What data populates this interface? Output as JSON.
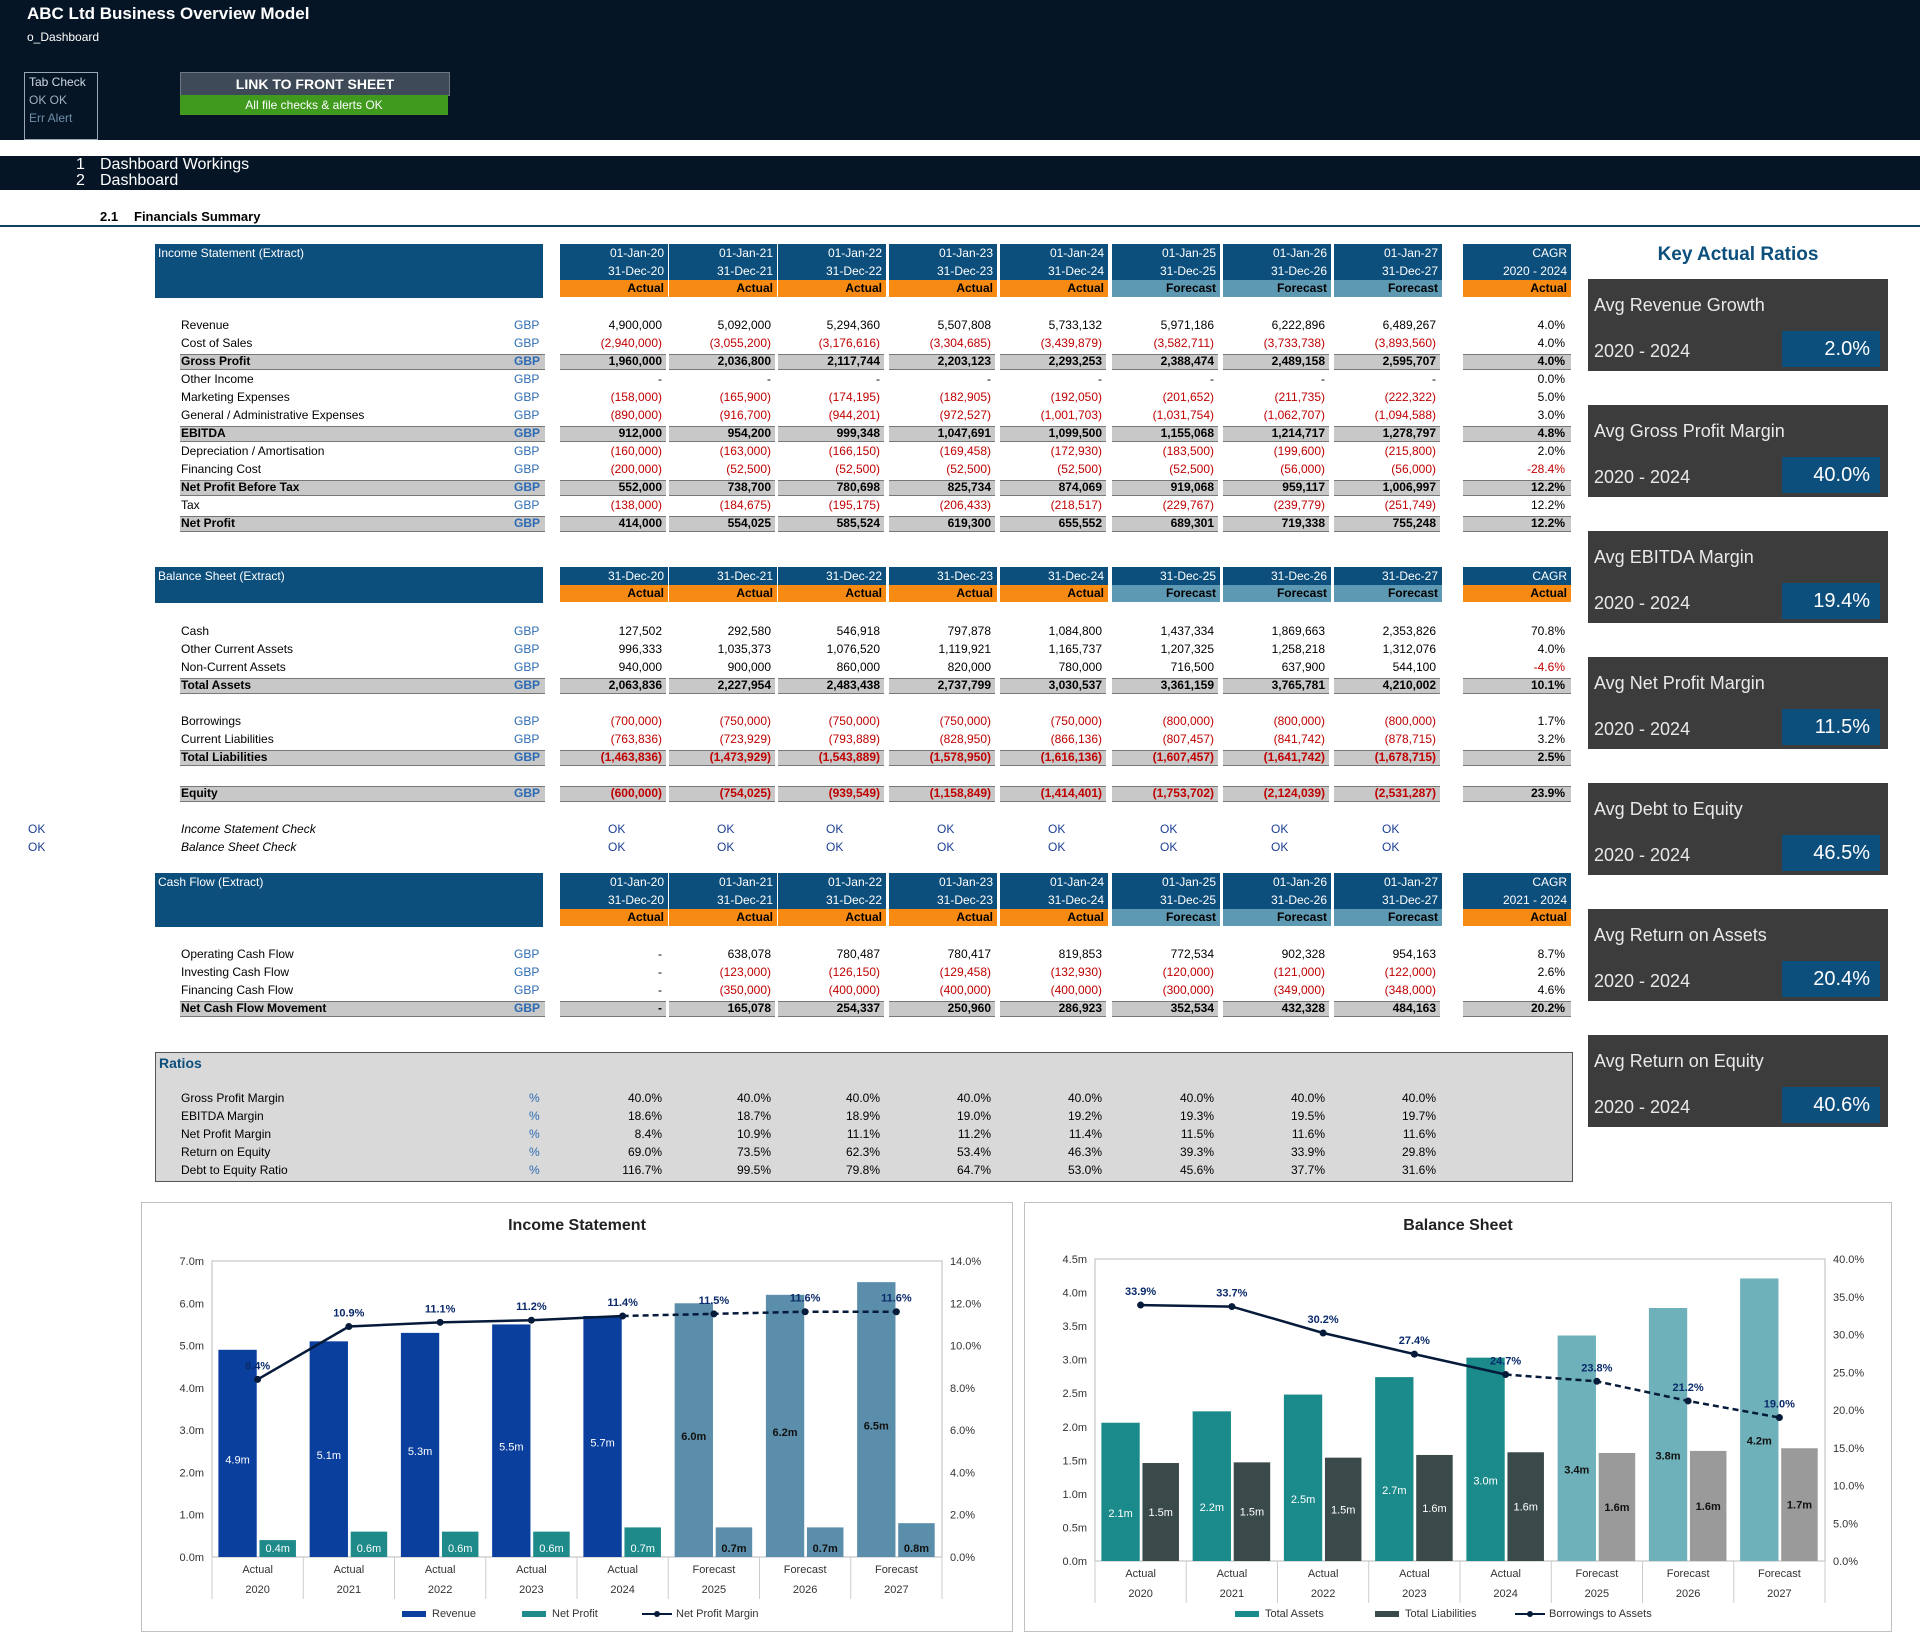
{
  "app": {
    "title": "ABC Ltd Business Overview Model",
    "sheet": "o_Dashboard",
    "tab_check_label": "Tab Check",
    "tab_check_ok": "OK  OK",
    "tab_check_err": "Err  Alert",
    "link_button": "LINK TO FRONT SHEET",
    "checks_status": "All file checks & alerts OK"
  },
  "nav": {
    "items": [
      {
        "num": "1",
        "label": "Dashboard Workings"
      },
      {
        "num": "2",
        "label": "Dashboard"
      }
    ]
  },
  "section": {
    "num": "2.1",
    "label": "Financials Summary"
  },
  "income_statement": {
    "title": "Income Statement (Extract)",
    "periods": [
      {
        "start": "01-Jan-20",
        "end": "31-Dec-20",
        "status": "Actual"
      },
      {
        "start": "01-Jan-21",
        "end": "31-Dec-21",
        "status": "Actual"
      },
      {
        "start": "01-Jan-22",
        "end": "31-Dec-22",
        "status": "Actual"
      },
      {
        "start": "01-Jan-23",
        "end": "31-Dec-23",
        "status": "Actual"
      },
      {
        "start": "01-Jan-24",
        "end": "31-Dec-24",
        "status": "Actual"
      },
      {
        "start": "01-Jan-25",
        "end": "31-Dec-25",
        "status": "Forecast"
      },
      {
        "start": "01-Jan-26",
        "end": "31-Dec-26",
        "status": "Forecast"
      },
      {
        "start": "01-Jan-27",
        "end": "31-Dec-27",
        "status": "Forecast"
      }
    ],
    "cagr": {
      "label": "CAGR",
      "range": "2020 - 2024",
      "status": "Actual"
    },
    "rows": [
      {
        "label": "Revenue",
        "unit": "GBP",
        "values": [
          "4,900,000",
          "5,092,000",
          "5,294,360",
          "5,507,808",
          "5,733,132",
          "5,971,186",
          "6,222,896",
          "6,489,267"
        ],
        "cagr": "4.0%",
        "total": false
      },
      {
        "label": "Cost of Sales",
        "unit": "GBP",
        "values": [
          "(2,940,000)",
          "(3,055,200)",
          "(3,176,616)",
          "(3,304,685)",
          "(3,439,879)",
          "(3,582,711)",
          "(3,733,738)",
          "(3,893,560)"
        ],
        "cagr": "4.0%",
        "total": false
      },
      {
        "label": "Gross Profit",
        "unit": "GBP",
        "values": [
          "1,960,000",
          "2,036,800",
          "2,117,744",
          "2,203,123",
          "2,293,253",
          "2,388,474",
          "2,489,158",
          "2,595,707"
        ],
        "cagr": "4.0%",
        "total": true
      },
      {
        "label": "Other Income",
        "unit": "GBP",
        "values": [
          "-",
          "-",
          "-",
          "-",
          "-",
          "-",
          "-",
          "-"
        ],
        "cagr": "0.0%",
        "total": false
      },
      {
        "label": "Marketing Expenses",
        "unit": "GBP",
        "values": [
          "(158,000)",
          "(165,900)",
          "(174,195)",
          "(182,905)",
          "(192,050)",
          "(201,652)",
          "(211,735)",
          "(222,322)"
        ],
        "cagr": "5.0%",
        "total": false
      },
      {
        "label": "General / Administrative Expenses",
        "unit": "GBP",
        "values": [
          "(890,000)",
          "(916,700)",
          "(944,201)",
          "(972,527)",
          "(1,001,703)",
          "(1,031,754)",
          "(1,062,707)",
          "(1,094,588)"
        ],
        "cagr": "3.0%",
        "total": false
      },
      {
        "label": "EBITDA",
        "unit": "GBP",
        "values": [
          "912,000",
          "954,200",
          "999,348",
          "1,047,691",
          "1,099,500",
          "1,155,068",
          "1,214,717",
          "1,278,797"
        ],
        "cagr": "4.8%",
        "total": true
      },
      {
        "label": "Depreciation / Amortisation",
        "unit": "GBP",
        "values": [
          "(160,000)",
          "(163,000)",
          "(166,150)",
          "(169,458)",
          "(172,930)",
          "(183,500)",
          "(199,600)",
          "(215,800)"
        ],
        "cagr": "2.0%",
        "total": false
      },
      {
        "label": "Financing Cost",
        "unit": "GBP",
        "values": [
          "(200,000)",
          "(52,500)",
          "(52,500)",
          "(52,500)",
          "(52,500)",
          "(52,500)",
          "(56,000)",
          "(56,000)"
        ],
        "cagr": "-28.4%",
        "total": false
      },
      {
        "label": "Net Profit Before Tax",
        "unit": "GBP",
        "values": [
          "552,000",
          "738,700",
          "780,698",
          "825,734",
          "874,069",
          "919,068",
          "959,117",
          "1,006,997"
        ],
        "cagr": "12.2%",
        "total": true
      },
      {
        "label": "Tax",
        "unit": "GBP",
        "values": [
          "(138,000)",
          "(184,675)",
          "(195,175)",
          "(206,433)",
          "(218,517)",
          "(229,767)",
          "(239,779)",
          "(251,749)"
        ],
        "cagr": "12.2%",
        "total": false
      },
      {
        "label": "Net Profit",
        "unit": "GBP",
        "values": [
          "414,000",
          "554,025",
          "585,524",
          "619,300",
          "655,552",
          "689,301",
          "719,338",
          "755,248"
        ],
        "cagr": "12.2%",
        "total": true
      }
    ]
  },
  "balance_sheet": {
    "title": "Balance Sheet (Extract)",
    "dates": [
      "31-Dec-20",
      "31-Dec-21",
      "31-Dec-22",
      "31-Dec-23",
      "31-Dec-24",
      "31-Dec-25",
      "31-Dec-26",
      "31-Dec-27"
    ],
    "status": [
      "Actual",
      "Actual",
      "Actual",
      "Actual",
      "Actual",
      "Forecast",
      "Forecast",
      "Forecast"
    ],
    "cagr": {
      "label": "CAGR",
      "status": "Actual"
    },
    "rows": [
      {
        "label": "Cash",
        "unit": "GBP",
        "values": [
          "127,502",
          "292,580",
          "546,918",
          "797,878",
          "1,084,800",
          "1,437,334",
          "1,869,663",
          "2,353,826"
        ],
        "cagr": "70.8%",
        "total": false,
        "gap": false
      },
      {
        "label": "Other Current Assets",
        "unit": "GBP",
        "values": [
          "996,333",
          "1,035,373",
          "1,076,520",
          "1,119,921",
          "1,165,737",
          "1,207,325",
          "1,258,218",
          "1,312,076"
        ],
        "cagr": "4.0%",
        "total": false,
        "gap": false
      },
      {
        "label": "Non-Current Assets",
        "unit": "GBP",
        "values": [
          "940,000",
          "900,000",
          "860,000",
          "820,000",
          "780,000",
          "716,500",
          "637,900",
          "544,100"
        ],
        "cagr": "-4.6%",
        "total": false,
        "gap": false
      },
      {
        "label": "Total Assets",
        "unit": "GBP",
        "values": [
          "2,063,836",
          "2,227,954",
          "2,483,438",
          "2,737,799",
          "3,030,537",
          "3,361,159",
          "3,765,781",
          "4,210,002"
        ],
        "cagr": "10.1%",
        "total": true,
        "gap": false
      },
      {
        "label": "Borrowings",
        "unit": "GBP",
        "values": [
          "(700,000)",
          "(750,000)",
          "(750,000)",
          "(750,000)",
          "(750,000)",
          "(800,000)",
          "(800,000)",
          "(800,000)"
        ],
        "cagr": "1.7%",
        "total": false,
        "gap": true
      },
      {
        "label": "Current Liabilities",
        "unit": "GBP",
        "values": [
          "(763,836)",
          "(723,929)",
          "(793,889)",
          "(828,950)",
          "(866,136)",
          "(807,457)",
          "(841,742)",
          "(878,715)"
        ],
        "cagr": "3.2%",
        "total": false,
        "gap": false
      },
      {
        "label": "Total Liabilities",
        "unit": "GBP",
        "values": [
          "(1,463,836)",
          "(1,473,929)",
          "(1,543,889)",
          "(1,578,950)",
          "(1,616,136)",
          "(1,607,457)",
          "(1,641,742)",
          "(1,678,715)"
        ],
        "cagr": "2.5%",
        "total": true,
        "gap": false
      },
      {
        "label": "Equity",
        "unit": "GBP",
        "values": [
          "(600,000)",
          "(754,025)",
          "(939,549)",
          "(1,158,849)",
          "(1,414,401)",
          "(1,753,702)",
          "(2,124,039)",
          "(2,531,287)"
        ],
        "cagr": "23.9%",
        "total": true,
        "gap": true
      }
    ]
  },
  "checks": {
    "rows": [
      {
        "flag": "OK",
        "label": "Income Statement Check",
        "values": [
          "OK",
          "OK",
          "OK",
          "OK",
          "OK",
          "OK",
          "OK",
          "OK"
        ]
      },
      {
        "flag": "OK",
        "label": "Balance Sheet Check",
        "values": [
          "OK",
          "OK",
          "OK",
          "OK",
          "OK",
          "OK",
          "OK",
          "OK"
        ]
      }
    ]
  },
  "cash_flow": {
    "title": "Cash Flow (Extract)",
    "periods": [
      {
        "start": "01-Jan-20",
        "end": "31-Dec-20",
        "status": "Actual"
      },
      {
        "start": "01-Jan-21",
        "end": "31-Dec-21",
        "status": "Actual"
      },
      {
        "start": "01-Jan-22",
        "end": "31-Dec-22",
        "status": "Actual"
      },
      {
        "start": "01-Jan-23",
        "end": "31-Dec-23",
        "status": "Actual"
      },
      {
        "start": "01-Jan-24",
        "end": "31-Dec-24",
        "status": "Actual"
      },
      {
        "start": "01-Jan-25",
        "end": "31-Dec-25",
        "status": "Forecast"
      },
      {
        "start": "01-Jan-26",
        "end": "31-Dec-26",
        "status": "Forecast"
      },
      {
        "start": "01-Jan-27",
        "end": "31-Dec-27",
        "status": "Forecast"
      }
    ],
    "cagr": {
      "label": "CAGR",
      "range": "2021 - 2024",
      "status": "Actual"
    },
    "rows": [
      {
        "label": "Operating Cash Flow",
        "unit": "GBP",
        "values": [
          "-",
          "638,078",
          "780,487",
          "780,417",
          "819,853",
          "772,534",
          "902,328",
          "954,163"
        ],
        "cagr": "8.7%",
        "total": false
      },
      {
        "label": "Investing Cash Flow",
        "unit": "GBP",
        "values": [
          "-",
          "(123,000)",
          "(126,150)",
          "(129,458)",
          "(132,930)",
          "(120,000)",
          "(121,000)",
          "(122,000)"
        ],
        "cagr": "2.6%",
        "total": false
      },
      {
        "label": "Financing Cash Flow",
        "unit": "GBP",
        "values": [
          "-",
          "(350,000)",
          "(400,000)",
          "(400,000)",
          "(400,000)",
          "(300,000)",
          "(349,000)",
          "(348,000)"
        ],
        "cagr": "4.6%",
        "total": false
      },
      {
        "label": "Net Cash Flow Movement",
        "unit": "GBP",
        "values": [
          "-",
          "165,078",
          "254,337",
          "250,960",
          "286,923",
          "352,534",
          "432,328",
          "484,163"
        ],
        "cagr": "20.2%",
        "total": true
      }
    ]
  },
  "ratios": {
    "title": "Ratios",
    "rows": [
      {
        "label": "Gross Profit Margin",
        "unit": "%",
        "values": [
          "40.0%",
          "40.0%",
          "40.0%",
          "40.0%",
          "40.0%",
          "40.0%",
          "40.0%",
          "40.0%"
        ]
      },
      {
        "label": "EBITDA Margin",
        "unit": "%",
        "values": [
          "18.6%",
          "18.7%",
          "18.9%",
          "19.0%",
          "19.2%",
          "19.3%",
          "19.5%",
          "19.7%"
        ]
      },
      {
        "label": "Net Profit Margin",
        "unit": "%",
        "values": [
          "8.4%",
          "10.9%",
          "11.1%",
          "11.2%",
          "11.4%",
          "11.5%",
          "11.6%",
          "11.6%"
        ]
      },
      {
        "label": "Return on Equity",
        "unit": "%",
        "values": [
          "69.0%",
          "73.5%",
          "62.3%",
          "53.4%",
          "46.3%",
          "39.3%",
          "33.9%",
          "29.8%"
        ]
      },
      {
        "label": "Debt to Equity Ratio",
        "unit": "%",
        "values": [
          "116.7%",
          "99.5%",
          "79.8%",
          "64.7%",
          "53.0%",
          "45.6%",
          "37.7%",
          "31.6%"
        ]
      }
    ]
  },
  "key_ratios": {
    "title": "Key Actual Ratios",
    "cards": [
      {
        "label": "Avg Revenue Growth",
        "period": "2020 - 2024",
        "value": "2.0%"
      },
      {
        "label": "Avg Gross Profit Margin",
        "period": "2020 - 2024",
        "value": "40.0%"
      },
      {
        "label": "Avg EBITDA Margin",
        "period": "2020 - 2024",
        "value": "19.4%"
      },
      {
        "label": "Avg Net Profit Margin",
        "period": "2020 - 2024",
        "value": "11.5%"
      },
      {
        "label": "Avg Debt to Equity",
        "period": "2020 - 2024",
        "value": "46.5%"
      },
      {
        "label": "Avg Return on Assets",
        "period": "2020 - 2024",
        "value": "20.4%"
      },
      {
        "label": "Avg Return on Equity",
        "period": "2020 - 2024",
        "value": "40.6%"
      }
    ]
  },
  "colors": {
    "header_blue": "#0c4e7c",
    "actual_orange": "#f78a13",
    "forecast_teal": "#5d99b3",
    "revenue_bar": "#0a3f9e",
    "forecast_bar": "#5a8eaa",
    "net_profit_bar": "#1f8a8a",
    "total_assets_bar": "#1a8a8a",
    "forecast_assets_bar": "#6fb1ba",
    "liabilities_bar": "#3a4a4a",
    "forecast_liab_bar": "#9a9a9a"
  },
  "chart_data": [
    {
      "type": "bar",
      "title": "Income Statement",
      "categories": [
        "2020",
        "2021",
        "2022",
        "2023",
        "2024",
        "2025",
        "2026",
        "2027"
      ],
      "category_status": [
        "Actual",
        "Actual",
        "Actual",
        "Actual",
        "Actual",
        "Forecast",
        "Forecast",
        "Forecast"
      ],
      "y_axis": {
        "ticks": [
          "0.0m",
          "1.0m",
          "2.0m",
          "3.0m",
          "4.0m",
          "5.0m",
          "6.0m",
          "7.0m"
        ],
        "min": 0,
        "max": 7
      },
      "y2_axis": {
        "ticks": [
          "0.0%",
          "2.0%",
          "4.0%",
          "6.0%",
          "8.0%",
          "10.0%",
          "12.0%",
          "14.0%"
        ],
        "min": 0,
        "max": 14
      },
      "series": [
        {
          "name": "Revenue",
          "values": [
            4.9,
            5.1,
            5.3,
            5.5,
            5.7,
            6.0,
            6.2,
            6.5
          ],
          "labels": [
            "4.9m",
            "5.1m",
            "5.3m",
            "5.5m",
            "5.7m",
            "6.0m",
            "6.2m",
            "6.5m"
          ]
        },
        {
          "name": "Net Profit",
          "values": [
            0.4,
            0.6,
            0.6,
            0.6,
            0.7,
            0.7,
            0.7,
            0.8
          ],
          "labels": [
            "0.4m",
            "0.6m",
            "0.6m",
            "0.6m",
            "0.7m",
            "0.7m",
            "0.7m",
            "0.8m"
          ]
        },
        {
          "name": "Net Profit Margin",
          "axis": "y2",
          "values": [
            8.4,
            10.9,
            11.1,
            11.2,
            11.4,
            11.5,
            11.6,
            11.6
          ],
          "labels": [
            "8.4%",
            "10.9%",
            "11.1%",
            "11.2%",
            "11.4%",
            "11.5%",
            "11.6%",
            "11.6%"
          ]
        }
      ],
      "legend": "bottom"
    },
    {
      "type": "bar",
      "title": "Balance Sheet",
      "categories": [
        "2020",
        "2021",
        "2022",
        "2023",
        "2024",
        "2025",
        "2026",
        "2027"
      ],
      "category_status": [
        "Actual",
        "Actual",
        "Actual",
        "Actual",
        "Actual",
        "Forecast",
        "Forecast",
        "Forecast"
      ],
      "y_axis": {
        "ticks": [
          "0.0m",
          "0.5m",
          "1.0m",
          "1.5m",
          "2.0m",
          "2.5m",
          "3.0m",
          "3.5m",
          "4.0m",
          "4.5m"
        ],
        "min": 0,
        "max": 4.5
      },
      "y2_axis": {
        "ticks": [
          "0.0%",
          "5.0%",
          "10.0%",
          "15.0%",
          "20.0%",
          "25.0%",
          "30.0%",
          "35.0%",
          "40.0%"
        ],
        "min": 0,
        "max": 40
      },
      "series": [
        {
          "name": "Total Assets",
          "values": [
            2.06,
            2.23,
            2.48,
            2.74,
            3.03,
            3.36,
            3.77,
            4.21
          ],
          "labels": [
            "2.1m",
            "2.2m",
            "2.5m",
            "2.7m",
            "3.0m",
            "3.4m",
            "3.8m",
            "4.2m"
          ]
        },
        {
          "name": "Total Liabilities",
          "values": [
            1.46,
            1.47,
            1.54,
            1.58,
            1.62,
            1.61,
            1.64,
            1.68
          ],
          "labels": [
            "1.5m",
            "1.5m",
            "1.5m",
            "1.6m",
            "1.6m",
            "1.6m",
            "1.6m",
            "1.7m"
          ]
        },
        {
          "name": "Borrowings to Assets",
          "axis": "y2",
          "values": [
            33.9,
            33.7,
            30.2,
            27.4,
            24.7,
            23.8,
            21.2,
            19.0
          ],
          "labels": [
            "33.9%",
            "33.7%",
            "30.2%",
            "27.4%",
            "24.7%",
            "23.8%",
            "21.2%",
            "19.0%"
          ]
        }
      ],
      "legend": "bottom"
    }
  ]
}
